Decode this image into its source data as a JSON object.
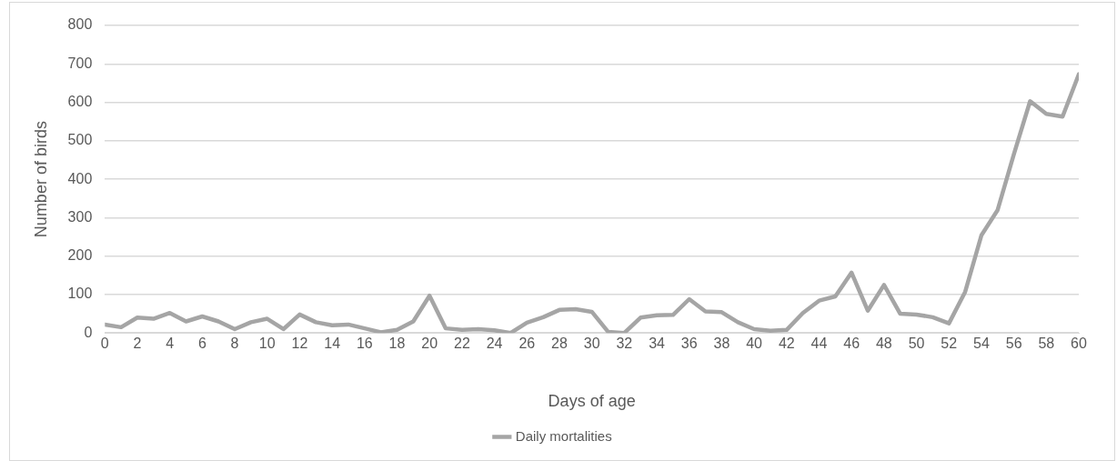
{
  "chart_data": {
    "type": "line",
    "xlabel": "Days of age",
    "ylabel": "Number of birds",
    "x": [
      0,
      1,
      2,
      3,
      4,
      5,
      6,
      7,
      8,
      9,
      10,
      11,
      12,
      13,
      14,
      15,
      16,
      17,
      18,
      19,
      20,
      21,
      22,
      23,
      24,
      25,
      26,
      27,
      28,
      29,
      30,
      31,
      32,
      33,
      34,
      35,
      36,
      37,
      38,
      39,
      40,
      41,
      42,
      43,
      44,
      45,
      46,
      47,
      48,
      49,
      50,
      51,
      52,
      53,
      54,
      55,
      56,
      57,
      58,
      59,
      60
    ],
    "series": [
      {
        "name": "Daily mortalities",
        "color": "#a5a5a5",
        "values": [
          22,
          15,
          40,
          37,
          52,
          30,
          43,
          30,
          10,
          28,
          37,
          10,
          48,
          28,
          20,
          22,
          12,
          2,
          8,
          30,
          97,
          12,
          8,
          10,
          7,
          0,
          27,
          41,
          60,
          62,
          55,
          3,
          0,
          40,
          46,
          47,
          88,
          56,
          54,
          28,
          10,
          6,
          8,
          52,
          84,
          95,
          157,
          58,
          125,
          50,
          48,
          41,
          25,
          107,
          254,
          320,
          465,
          603,
          570,
          563,
          673
        ]
      }
    ],
    "xlim": [
      0,
      60
    ],
    "xticks": [
      0,
      2,
      4,
      6,
      8,
      10,
      12,
      14,
      16,
      18,
      20,
      22,
      24,
      26,
      28,
      30,
      32,
      34,
      36,
      38,
      40,
      42,
      44,
      46,
      48,
      50,
      52,
      54,
      56,
      58,
      60
    ],
    "ylim": [
      0,
      800
    ],
    "yticks": [
      0,
      100,
      200,
      300,
      400,
      500,
      600,
      700,
      800
    ],
    "grid": "y",
    "legend": "bottom",
    "marker": "none",
    "line_style": "solid"
  }
}
